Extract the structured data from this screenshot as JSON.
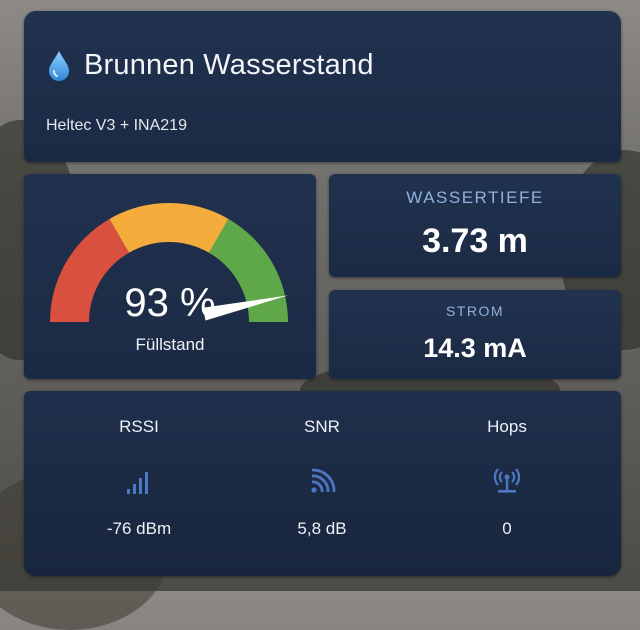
{
  "header": {
    "title": "Brunnen Wasserstand",
    "subtitle": "Heltec V3 + INA219"
  },
  "gauge": {
    "value_text": "93 %",
    "label": "Füllstand",
    "fill_percent": 93,
    "zone_colors": [
      "#d9503f",
      "#f4ad3d",
      "#5fa84a"
    ]
  },
  "depth": {
    "label": "WASSERTIEFE",
    "value": "3.73 m"
  },
  "current": {
    "label": "STROM",
    "value": "14.3 mA"
  },
  "stats": {
    "rssi": {
      "label": "RSSI",
      "value": "-76 dBm",
      "icon": "signal-bars-icon"
    },
    "snr": {
      "label": "SNR",
      "value": "5,8 dB",
      "icon": "wifi-signal-icon"
    },
    "hops": {
      "label": "Hops",
      "value": "0",
      "icon": "antenna-tower-icon"
    }
  },
  "colors": {
    "card_bg": "#1f2f4b",
    "accent_label": "#8fb2de",
    "icon_blue": "#4b78c2",
    "water_drop": "#5aa7e8"
  }
}
